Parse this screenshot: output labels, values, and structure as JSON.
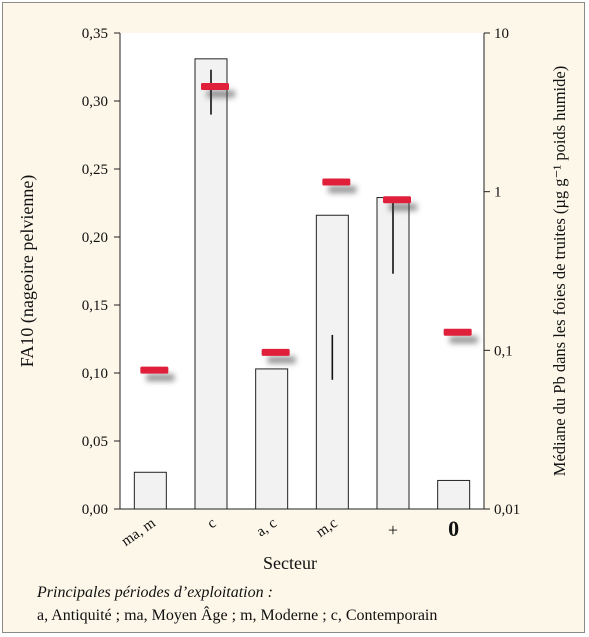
{
  "chart_data": {
    "type": "bar",
    "xlabel": "Secteur",
    "ylabel": "FA10 (nageoire pelvienne)",
    "y2label": "Médiane du Pb dans les foies de truites (µg g⁻¹ poids humide)",
    "categories": [
      "ma, m",
      "c",
      "a, c",
      "m,c",
      "+",
      "0"
    ],
    "values": [
      0.027,
      0.331,
      0.103,
      0.216,
      0.229,
      0.021
    ],
    "error_bars": [
      null,
      [
        0.29,
        0.323
      ],
      null,
      [
        0.095,
        0.128
      ],
      [
        0.173,
        0.229
      ],
      null
    ],
    "ylim": [
      0,
      0.35
    ],
    "yticks": [
      "0,00",
      "0,05",
      "0,10",
      "0,15",
      "0,20",
      "0,25",
      "0,30",
      "0,35"
    ],
    "y2_scale": "log",
    "y2lim": [
      0.01,
      10
    ],
    "y2ticks": [
      "0,01",
      "0,1",
      "1",
      "10"
    ],
    "markers": {
      "axis": "y2",
      "color": "#e0203a",
      "points": [
        {
          "category": "ma, m",
          "value": 0.075
        },
        {
          "category": "c",
          "value": 4.6
        },
        {
          "category": "a, c",
          "value": 0.097
        },
        {
          "category": "m,c",
          "value": 1.15
        },
        {
          "category": "+",
          "value": 0.89
        },
        {
          "category": "0",
          "value": 0.13
        }
      ]
    }
  },
  "notes": {
    "title": "Principales périodes d’exploitation :",
    "legend": "a, Antiquité ; ma, Moyen Âge ; m, Moderne ; c, Contemporain"
  }
}
